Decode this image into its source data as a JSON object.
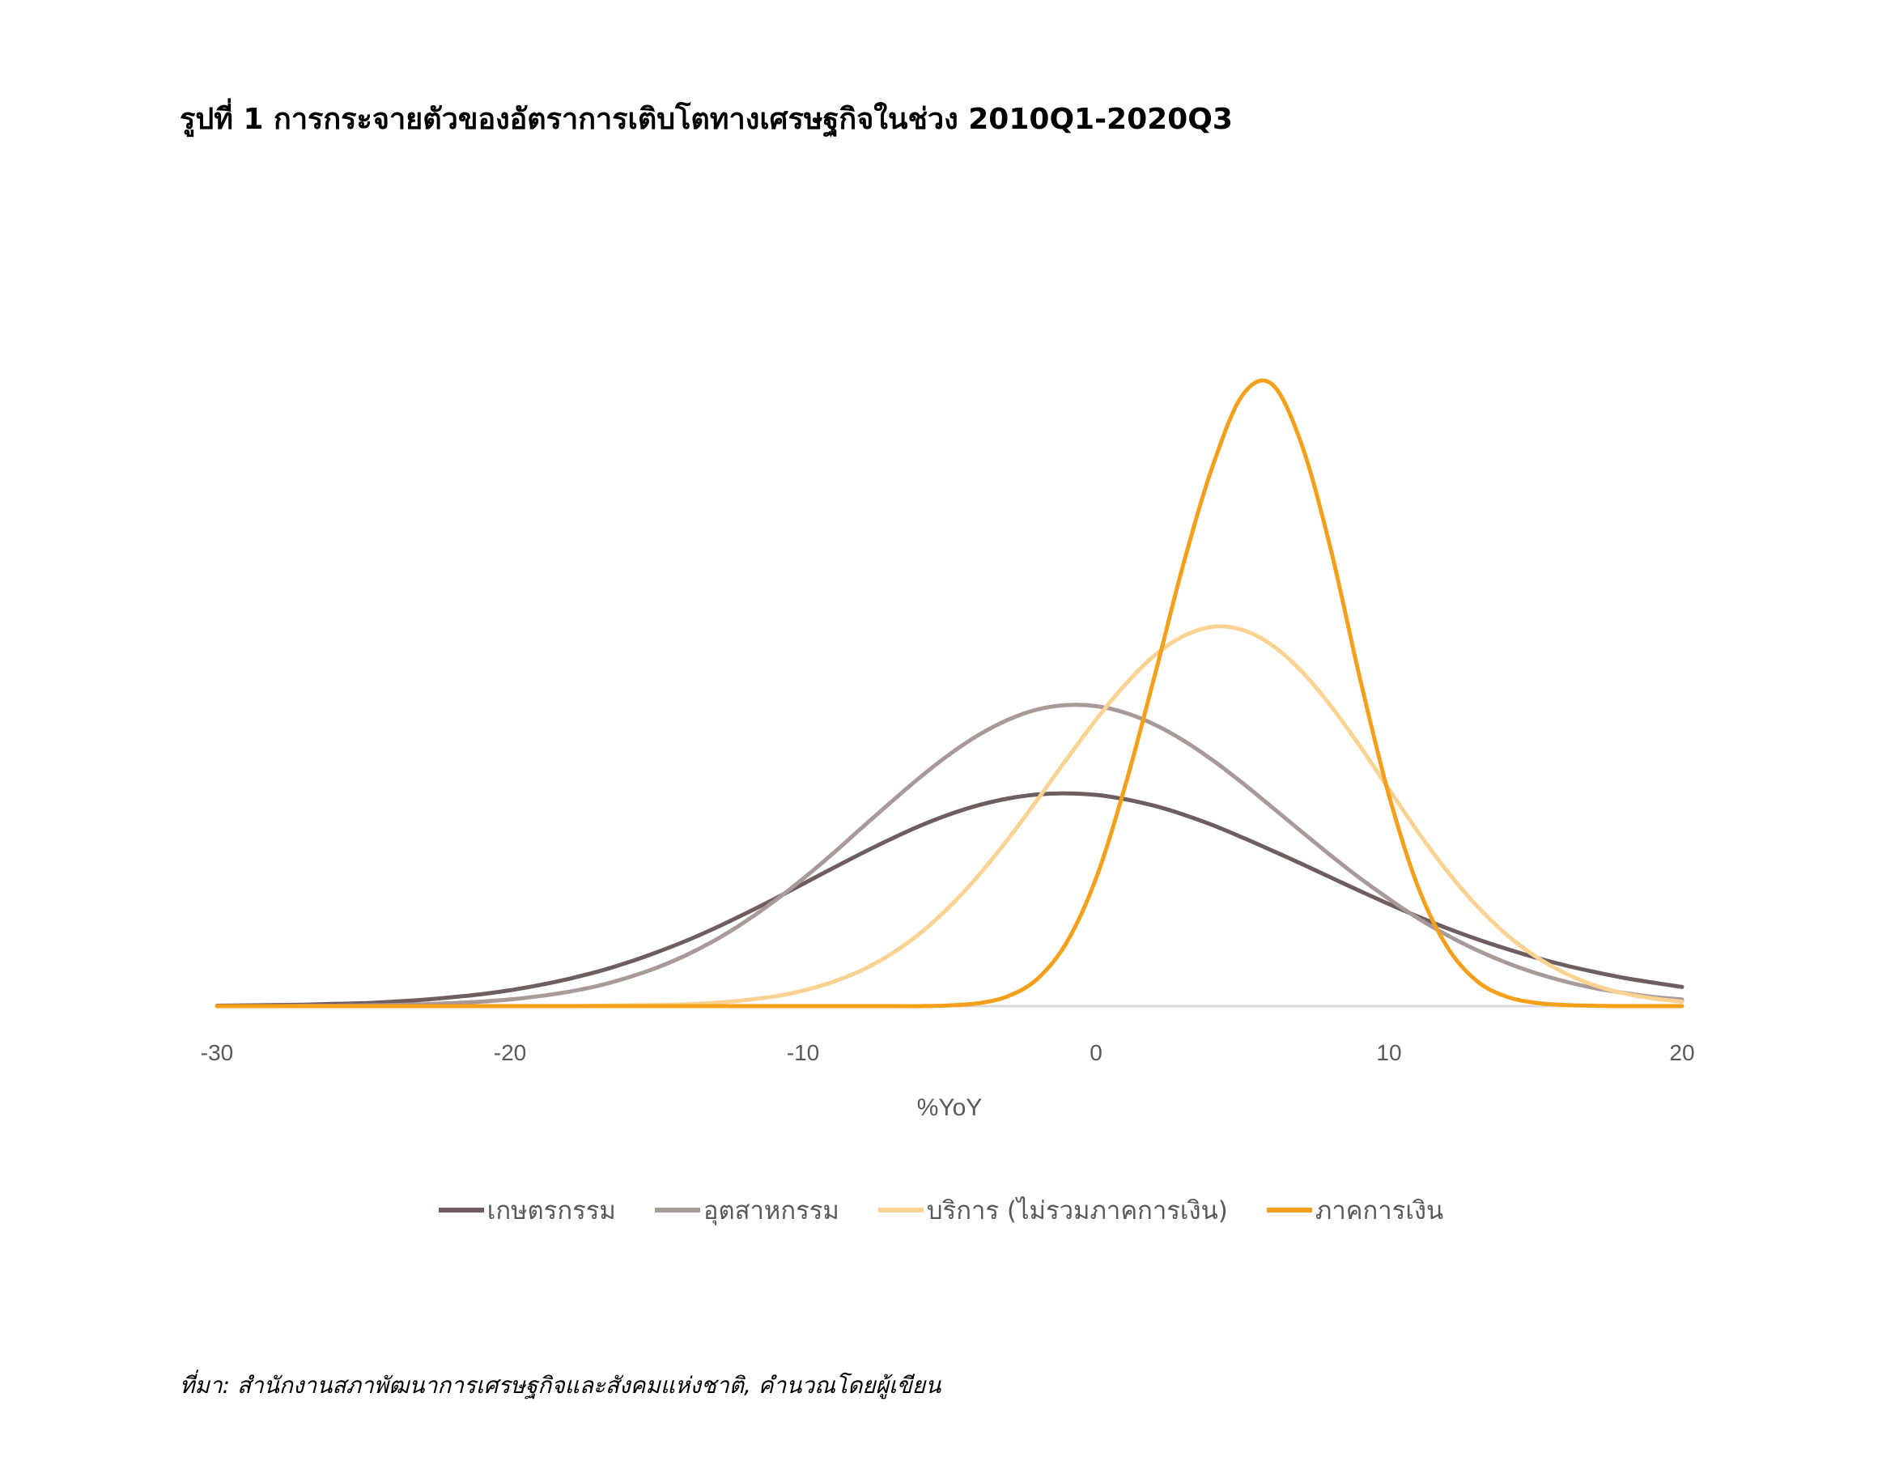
{
  "title": "รูปที่ 1 การกระจายตัวของอัตราการเติบโตทางเศรษฐกิจในช่วง 2010Q1-2020Q3",
  "source": "ที่มา: สำนักงานสภาพัฒนาการเศรษฐกิจและสังคมแห่งชาติ, คำนวณโดยผู้เขียน",
  "chart_data": {
    "type": "line",
    "title": "รูปที่ 1 การกระจายตัวของอัตราการเติบโตทางเศรษฐกิจในช่วง 2010Q1-2020Q3",
    "xlabel": "%YoY",
    "ylabel": "",
    "xlim": [
      -30,
      20
    ],
    "xticks": [
      -30,
      -20,
      -10,
      0,
      10,
      20
    ],
    "xtick_labels": [
      "-30",
      "-20",
      "-10",
      "0",
      "10",
      "20"
    ],
    "ylim": [
      0,
      0.17
    ],
    "y_axis_visible": false,
    "grid": false,
    "legend_position": "bottom",
    "x": [
      -30,
      -29,
      -28,
      -27,
      -26,
      -25,
      -24,
      -23,
      -22,
      -21,
      -20,
      -19,
      -18,
      -17,
      -16,
      -15,
      -14,
      -13,
      -12,
      -11,
      -10,
      -9,
      -8,
      -7,
      -6,
      -5,
      -4,
      -3,
      -2,
      -1,
      0,
      1,
      2,
      3,
      4,
      5,
      6,
      7,
      8,
      9,
      10,
      11,
      12,
      13,
      14,
      15,
      16,
      17,
      18,
      19,
      20
    ],
    "series": [
      {
        "name": "เกษตรกรรม",
        "color": "#6f5e60",
        "values": [
          0.0001,
          0.0002,
          0.0003,
          0.0004,
          0.0006,
          0.0008,
          0.0012,
          0.0017,
          0.0024,
          0.0032,
          0.0043,
          0.0057,
          0.0074,
          0.0094,
          0.0118,
          0.0146,
          0.0177,
          0.0212,
          0.025,
          0.029,
          0.0332,
          0.0374,
          0.0415,
          0.0454,
          0.049,
          0.0521,
          0.0546,
          0.0564,
          0.0575,
          0.0578,
          0.0574,
          0.0562,
          0.0544,
          0.052,
          0.0491,
          0.0458,
          0.0423,
          0.0387,
          0.035,
          0.0313,
          0.0277,
          0.0243,
          0.0211,
          0.0182,
          0.0156,
          0.0132,
          0.0111,
          0.0093,
          0.0077,
          0.0064,
          0.0052
        ]
      },
      {
        "name": "อุตสาหกรรม",
        "color": "#a89a99",
        "values": [
          0.0,
          0.0,
          0.0,
          0.0001,
          0.0001,
          0.0002,
          0.0003,
          0.0005,
          0.0008,
          0.0012,
          0.0018,
          0.0027,
          0.0039,
          0.0055,
          0.0077,
          0.0104,
          0.0138,
          0.0179,
          0.0228,
          0.0284,
          0.0346,
          0.0413,
          0.0484,
          0.0554,
          0.0622,
          0.0684,
          0.0737,
          0.0778,
          0.0806,
          0.0818,
          0.0815,
          0.0797,
          0.0765,
          0.0721,
          0.0667,
          0.0606,
          0.0541,
          0.0475,
          0.041,
          0.0348,
          0.0291,
          0.0238,
          0.0192,
          0.0152,
          0.0118,
          0.009,
          0.0067,
          0.0049,
          0.0036,
          0.0025,
          0.0018
        ]
      },
      {
        "name": "บริการ (ไม่รวมภาคการเงิน)",
        "color": "#fad291",
        "values": [
          0.0,
          0.0,
          0.0,
          0.0,
          0.0,
          0.0,
          0.0,
          0.0,
          0.0,
          0.0,
          0.0,
          0.0,
          0.0,
          0.0001,
          0.0002,
          0.0003,
          0.0005,
          0.0009,
          0.0016,
          0.0026,
          0.0042,
          0.0065,
          0.0097,
          0.0141,
          0.0198,
          0.027,
          0.0356,
          0.0454,
          0.0561,
          0.0671,
          0.0778,
          0.0874,
          0.0953,
          0.1006,
          0.1031,
          0.1022,
          0.0981,
          0.0911,
          0.0817,
          0.0707,
          0.0589,
          0.0472,
          0.0365,
          0.0272,
          0.0195,
          0.0135,
          0.009,
          0.0057,
          0.0035,
          0.0021,
          0.0012
        ]
      },
      {
        "name": "ภาคการเงิน",
        "color": "#f4a01b",
        "values": [
          0.0,
          0.0,
          0.0,
          0.0,
          0.0,
          0.0,
          0.0,
          0.0,
          0.0,
          0.0,
          0.0,
          0.0,
          0.0,
          0.0,
          0.0,
          0.0,
          0.0,
          0.0,
          0.0,
          0.0,
          0.0,
          0.0,
          0.0,
          0.0,
          0.0,
          0.0002,
          0.0008,
          0.0027,
          0.0074,
          0.0173,
          0.0347,
          0.06,
          0.0897,
          0.1206,
          0.1472,
          0.166,
          0.169,
          0.153,
          0.1245,
          0.0893,
          0.0572,
          0.0322,
          0.0159,
          0.0068,
          0.0026,
          0.0009,
          0.0003,
          0.0001,
          0.0,
          0.0,
          0.0
        ]
      }
    ]
  }
}
